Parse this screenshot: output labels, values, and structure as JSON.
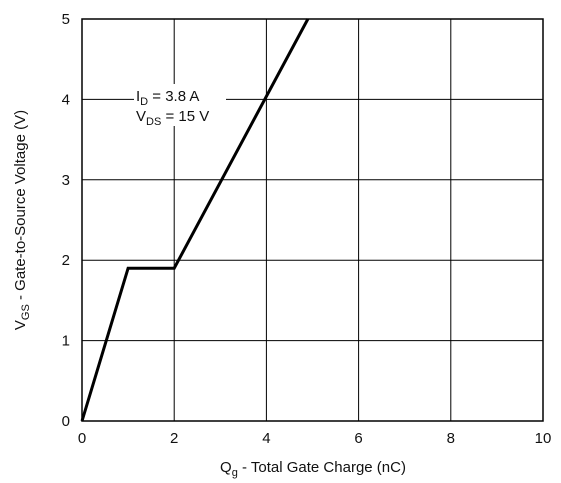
{
  "chart_data": {
    "type": "line",
    "x": [
      0,
      1,
      2,
      4.9
    ],
    "y": [
      0,
      1.9,
      1.9,
      5
    ],
    "xlim": [
      0,
      10
    ],
    "ylim": [
      0,
      5
    ],
    "xticks": [
      "0",
      "2",
      "4",
      "6",
      "8",
      "10"
    ],
    "yticks": [
      "0",
      "1",
      "2",
      "3",
      "4",
      "5"
    ],
    "grid": true,
    "line_color": "#000000",
    "xlabel": {
      "main": "Q",
      "sub": "g",
      "rest": " - Total Gate Charge (nC)"
    },
    "ylabel": {
      "main": "V",
      "sub": "GS",
      "rest": " - Gate-to-Source Voltage (V)"
    },
    "annotations": [
      {
        "main": "I",
        "sub": "D",
        "rest": " = 3.8 A"
      },
      {
        "main": "V",
        "sub": "DS",
        "rest": " = 15 V"
      }
    ]
  }
}
